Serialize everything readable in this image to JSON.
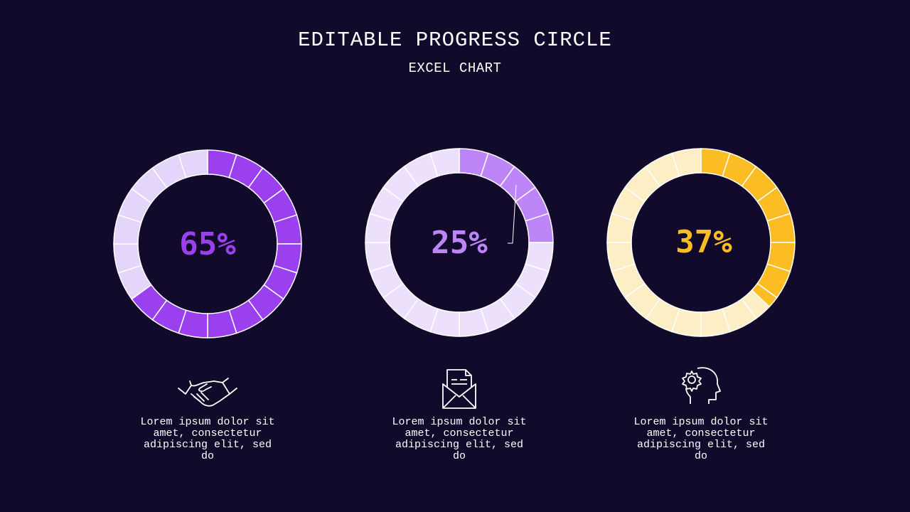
{
  "title": "EDITABLE PROGRESS CIRCLE",
  "subtitle": "EXCEL CHART",
  "chart_data": [
    {
      "type": "pie",
      "label": "65%",
      "value": 65,
      "segments": 20,
      "color": "#9b40ee",
      "track_color": "#e4d5fb"
    },
    {
      "type": "pie",
      "label": "25%",
      "value": 25,
      "segments": 20,
      "color": "#be85f8",
      "track_color": "#ece0fc"
    },
    {
      "type": "pie",
      "label": "37%",
      "value": 37,
      "segments": 20,
      "color": "#fbbd23",
      "track_color": "#fdeec5"
    }
  ],
  "items": [
    {
      "icon": "handshake-icon",
      "text": "Lorem ipsum dolor sit amet, consectetur adipiscing elit, sed do"
    },
    {
      "icon": "mail-icon",
      "text": "Lorem ipsum dolor sit amet, consectetur adipiscing elit, sed do"
    },
    {
      "icon": "head-gear-icon",
      "text": "Lorem ipsum dolor sit amet, consectetur adipiscing elit, sed do"
    }
  ]
}
